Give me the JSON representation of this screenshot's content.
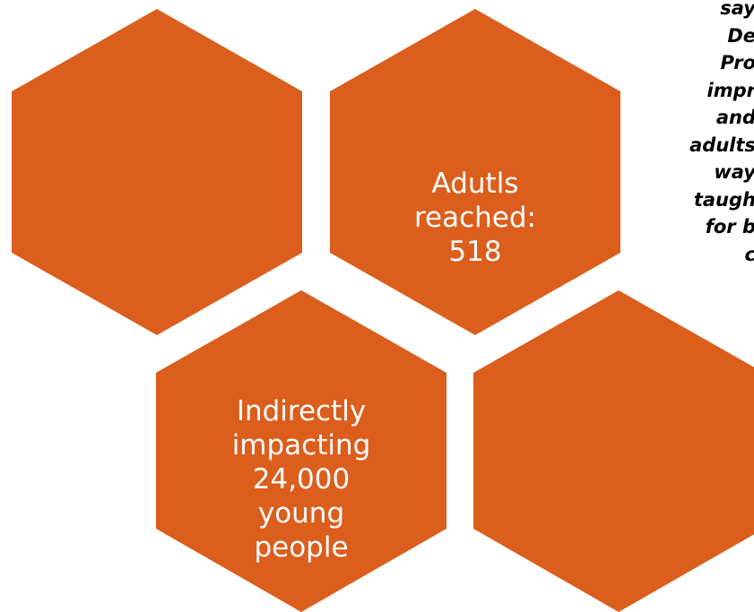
{
  "colors": {
    "hex_fill": "#dc5e1d",
    "label_text": "#ffffff",
    "quote_text": "#000000"
  },
  "hexagons": [
    {
      "name": "hex-top-left",
      "label": ""
    },
    {
      "name": "hex-top-middle",
      "label": "Adutls\nreached:\n518"
    },
    {
      "name": "hex-bottom-middle",
      "label": "Indirectly\nimpacting\n24,000\nyoung\npeople"
    },
    {
      "name": "hex-bottom-right",
      "label": ""
    }
  ],
  "quote": {
    "lines": [
      "say",
      "De",
      "Pro",
      "impr",
      "and",
      "adults",
      "way",
      "taugh",
      "for b",
      "c"
    ]
  }
}
